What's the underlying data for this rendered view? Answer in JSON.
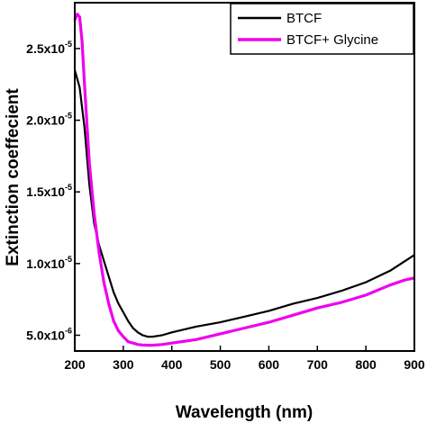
{
  "chart_data": {
    "type": "line",
    "xlabel": "Wavelength (nm)",
    "ylabel": "Extinction coeffecient",
    "xlim": [
      200,
      900
    ],
    "ylim": [
      3.9e-06,
      2.82e-05
    ],
    "x_ticks": [
      200,
      300,
      400,
      500,
      600,
      700,
      800,
      900
    ],
    "x_tick_labels": [
      "200",
      "300",
      "400",
      "500",
      "600",
      "700",
      "800",
      "900"
    ],
    "y_ticks": [
      {
        "value": 5e-06,
        "mantissa": "5.0x10",
        "exponent": "-6"
      },
      {
        "value": 1e-05,
        "mantissa": "1.0x10",
        "exponent": "-5"
      },
      {
        "value": 1.5e-05,
        "mantissa": "1.5x10",
        "exponent": "-5"
      },
      {
        "value": 2e-05,
        "mantissa": "2.0x10",
        "exponent": "-5"
      },
      {
        "value": 2.5e-05,
        "mantissa": "2.5x10",
        "exponent": "-5"
      }
    ],
    "grid": false,
    "legend_position": "top-right",
    "series": [
      {
        "name": "BTCF",
        "color": "#000000",
        "x": [
          200,
          210,
          220,
          230,
          240,
          250,
          260,
          270,
          280,
          290,
          300,
          310,
          320,
          330,
          340,
          350,
          360,
          370,
          380,
          400,
          450,
          500,
          550,
          600,
          650,
          700,
          750,
          800,
          850,
          900
        ],
        "y": [
          2.35e-05,
          2.23e-05,
          1.95e-05,
          1.55e-05,
          1.28e-05,
          1.13e-05,
          1.02e-05,
          9.1e-06,
          8e-06,
          7.2e-06,
          6.6e-06,
          6e-06,
          5.5e-06,
          5.2e-06,
          5e-06,
          4.9e-06,
          4.9e-06,
          4.95e-06,
          5e-06,
          5.2e-06,
          5.6e-06,
          5.9e-06,
          6.3e-06,
          6.7e-06,
          7.2e-06,
          7.6e-06,
          8.1e-06,
          8.7e-06,
          9.5e-06,
          1.06e-05
        ]
      },
      {
        "name": "BTCF+ Glycine",
        "color": "#ee00ee",
        "x": [
          200,
          205,
          210,
          215,
          220,
          230,
          240,
          250,
          260,
          270,
          280,
          290,
          300,
          310,
          320,
          330,
          340,
          350,
          360,
          380,
          400,
          450,
          500,
          550,
          600,
          650,
          700,
          750,
          800,
          850,
          880,
          900
        ],
        "y": [
          2.7e-05,
          2.74e-05,
          2.72e-05,
          2.55e-05,
          2.25e-05,
          1.7e-05,
          1.35e-05,
          1.08e-05,
          8.7e-06,
          7.2e-06,
          6e-06,
          5.3e-06,
          4.9e-06,
          4.55e-06,
          4.45e-06,
          4.35e-06,
          4.32e-06,
          4.3e-06,
          4.3e-06,
          4.35e-06,
          4.45e-06,
          4.7e-06,
          5.1e-06,
          5.5e-06,
          5.9e-06,
          6.4e-06,
          6.9e-06,
          7.3e-06,
          7.8e-06,
          8.5e-06,
          8.85e-06,
          9e-06
        ]
      }
    ]
  }
}
